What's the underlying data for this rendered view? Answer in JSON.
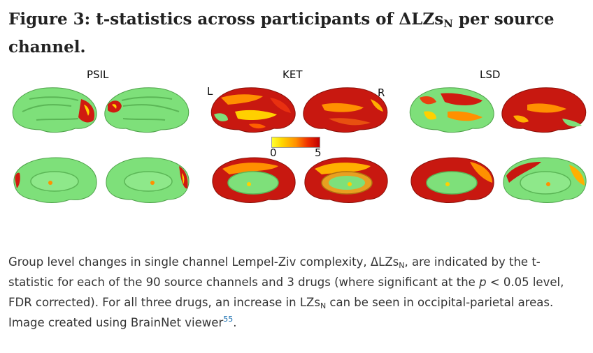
{
  "figure": {
    "title_prefix": "Figure 3: t-statistics across participants of ΔLZs",
    "title_sub": "N",
    "title_suffix": " per source channel.",
    "panels": [
      {
        "label": "PSIL"
      },
      {
        "label": "KET"
      },
      {
        "label": "LSD"
      }
    ],
    "hemisphere_left": "L",
    "hemisphere_right": "R",
    "colorbar": {
      "min": "0",
      "max": "5"
    },
    "colors": {
      "brain_base": "#7ee07a",
      "low": "#ffff30",
      "mid": "#ff9000",
      "high": "#c00000"
    }
  },
  "caption": {
    "part1": "Group level changes in single channel Lempel-Ziv complexity, ΔLZs",
    "sub1": "N",
    "part2": ", are indicated by the t-statistic for each of the 90 source channels and 3 drugs (where significant at the ",
    "p_italic": "p",
    "part3": " < 0.05 level, FDR corrected). For all three drugs, an increase in LZs",
    "sub2": "N",
    "part4": " can be seen in occipital-parietal areas. Image created using BrainNet viewer",
    "ref": "55",
    "part5": "."
  }
}
